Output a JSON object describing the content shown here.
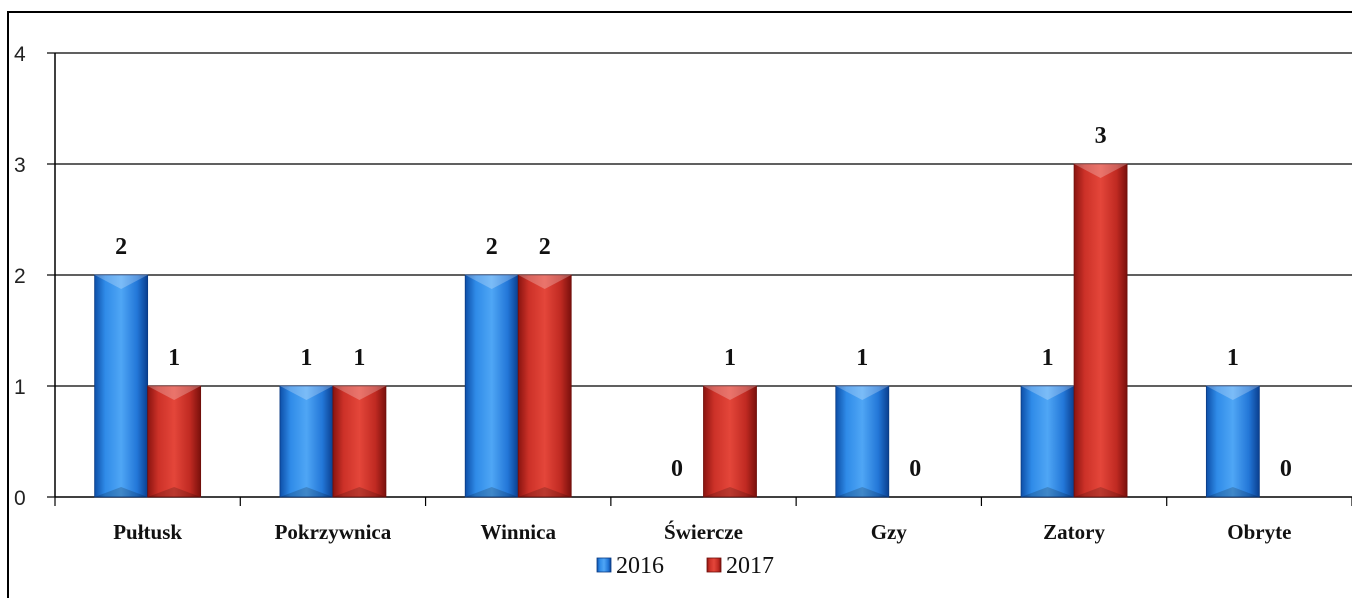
{
  "chart_data": {
    "type": "bar",
    "title": "",
    "xlabel": "",
    "ylabel": "",
    "categories": [
      "Pułtusk",
      "Pokrzywnica",
      "Winnica",
      "Świercze",
      "Gzy",
      "Zatory",
      "Obryte"
    ],
    "series": [
      {
        "name": "2016",
        "values": [
          2,
          1,
          2,
          0,
          1,
          1,
          1
        ],
        "value_labels": [
          "2",
          "1",
          "2",
          "0",
          "1",
          "1",
          "1"
        ],
        "color": "#1f6fd1"
      },
      {
        "name": "2017",
        "values": [
          1,
          1,
          2,
          1,
          0,
          3,
          0
        ],
        "value_labels": [
          "1",
          "1",
          "2",
          "1",
          "0",
          "3",
          "0"
        ],
        "color": "#c62a22"
      }
    ],
    "ylim": [
      0,
      4
    ],
    "yticks": [
      "0",
      "1",
      "2",
      "3",
      "4"
    ],
    "grid": true,
    "legend_position": "bottom"
  }
}
